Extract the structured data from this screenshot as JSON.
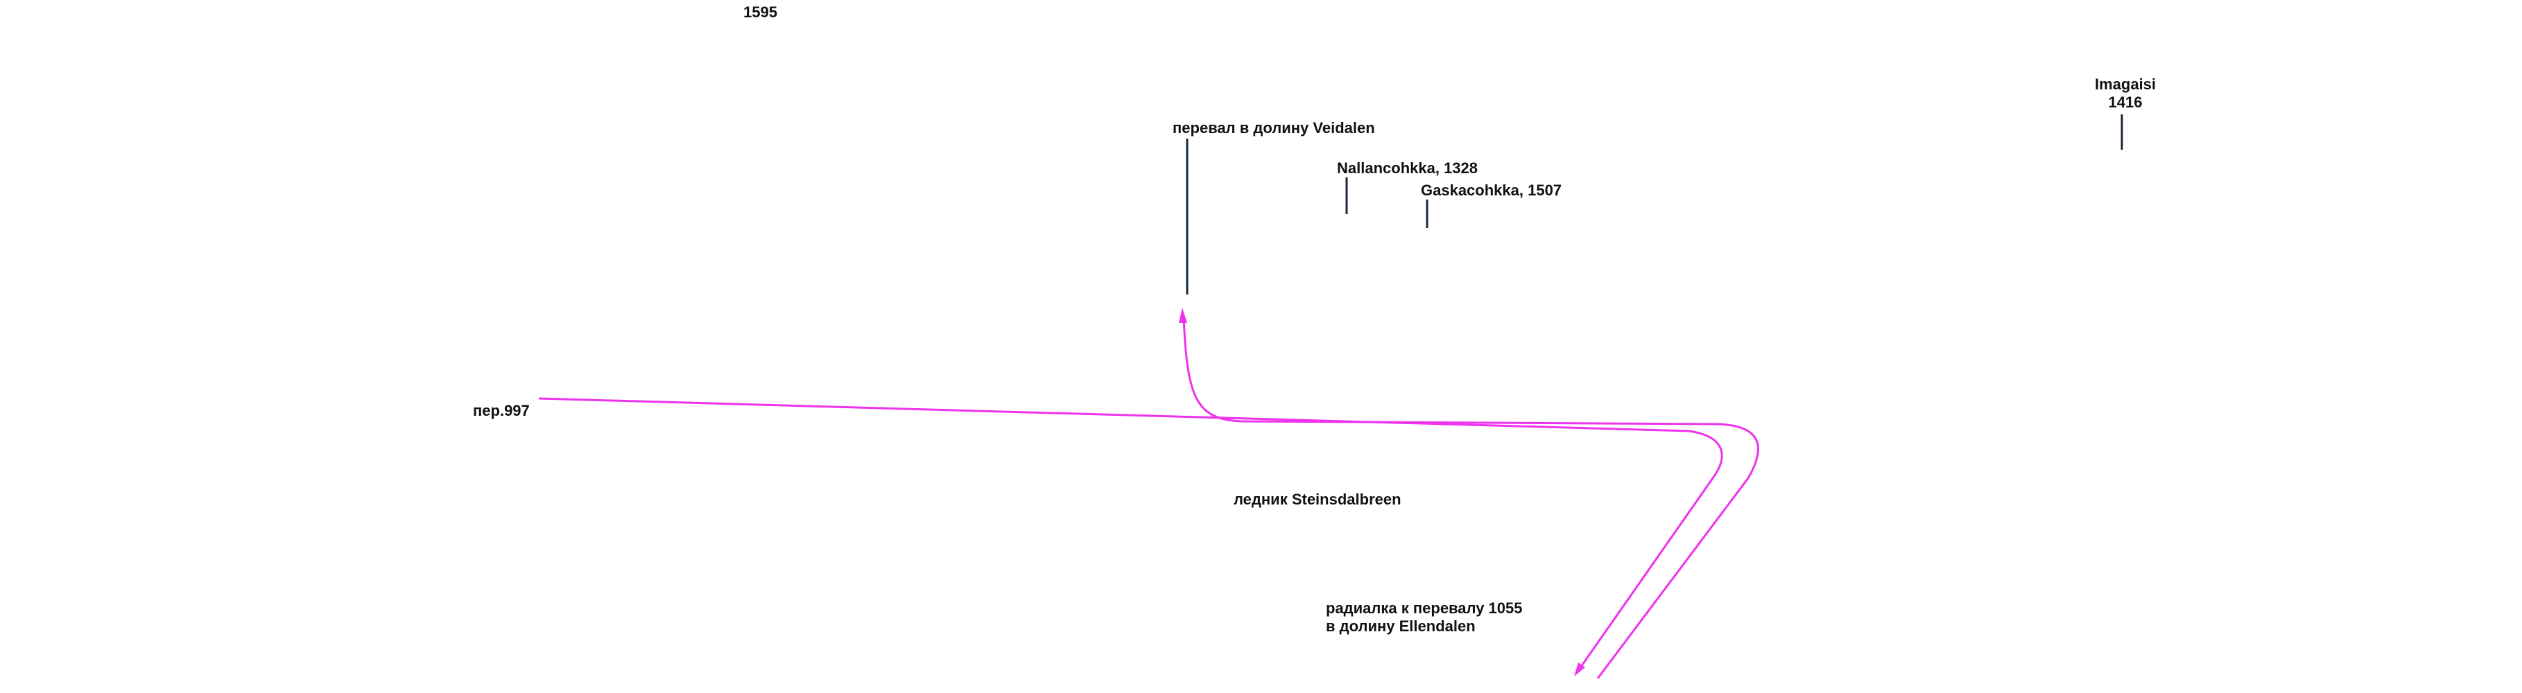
{
  "labels": {
    "peak_1595": "1595",
    "veidalen_pass": "перевал в долину Veidalen",
    "nallancohkka": "Nallancohkka, 1328",
    "gaskacohkka": "Gaskacohkka, 1507",
    "imagaisi": [
      "Imagaisi",
      "1416"
    ],
    "pass_997": "пер.997",
    "glacier": "ледник Steinsdalbreen",
    "radial": [
      "радиалка к перевалу 1055",
      "в долину Ellendalen"
    ]
  }
}
